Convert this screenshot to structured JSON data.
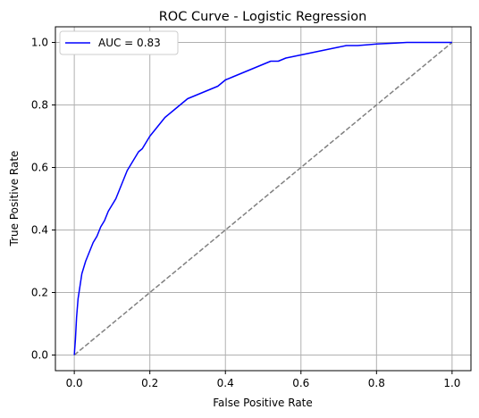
{
  "chart_data": {
    "type": "line",
    "title": "ROC Curve - Logistic Regression",
    "xlabel": "False Positive Rate",
    "ylabel": "True Positive Rate",
    "xlim": [
      -0.05,
      1.05
    ],
    "ylim": [
      -0.05,
      1.05
    ],
    "xticks": [
      0.0,
      0.2,
      0.4,
      0.6,
      0.8,
      1.0
    ],
    "xtick_labels": [
      "0.0",
      "0.2",
      "0.4",
      "0.6",
      "0.8",
      "1.0"
    ],
    "yticks": [
      0.0,
      0.2,
      0.4,
      0.6,
      0.8,
      1.0
    ],
    "ytick_labels": [
      "0.0",
      "0.2",
      "0.4",
      "0.6",
      "0.8",
      "1.0"
    ],
    "grid": true,
    "legend_position": "upper-left",
    "series": [
      {
        "name": "AUC = 0.83",
        "color": "#0000ff",
        "style": "solid",
        "x": [
          0.0,
          0.003,
          0.006,
          0.01,
          0.015,
          0.02,
          0.03,
          0.04,
          0.05,
          0.06,
          0.07,
          0.08,
          0.09,
          0.1,
          0.11,
          0.12,
          0.13,
          0.14,
          0.15,
          0.16,
          0.17,
          0.18,
          0.2,
          0.22,
          0.24,
          0.26,
          0.28,
          0.3,
          0.32,
          0.34,
          0.36,
          0.38,
          0.4,
          0.42,
          0.44,
          0.46,
          0.48,
          0.5,
          0.52,
          0.54,
          0.56,
          0.58,
          0.6,
          0.62,
          0.64,
          0.66,
          0.68,
          0.7,
          0.72,
          0.75,
          0.78,
          0.8,
          0.85,
          0.88,
          0.9,
          0.95,
          1.0
        ],
        "y": [
          0.0,
          0.05,
          0.12,
          0.18,
          0.22,
          0.26,
          0.3,
          0.33,
          0.36,
          0.38,
          0.41,
          0.43,
          0.46,
          0.48,
          0.5,
          0.53,
          0.56,
          0.59,
          0.61,
          0.63,
          0.65,
          0.66,
          0.7,
          0.73,
          0.76,
          0.78,
          0.8,
          0.82,
          0.83,
          0.84,
          0.85,
          0.86,
          0.88,
          0.89,
          0.9,
          0.91,
          0.92,
          0.93,
          0.94,
          0.94,
          0.95,
          0.955,
          0.96,
          0.965,
          0.97,
          0.975,
          0.98,
          0.985,
          0.99,
          0.99,
          0.993,
          0.995,
          0.998,
          1.0,
          1.0,
          1.0,
          1.0
        ]
      },
      {
        "color": "#808080",
        "style": "dashed",
        "x": [
          0.0,
          1.0
        ],
        "y": [
          0.0,
          1.0
        ]
      }
    ]
  }
}
